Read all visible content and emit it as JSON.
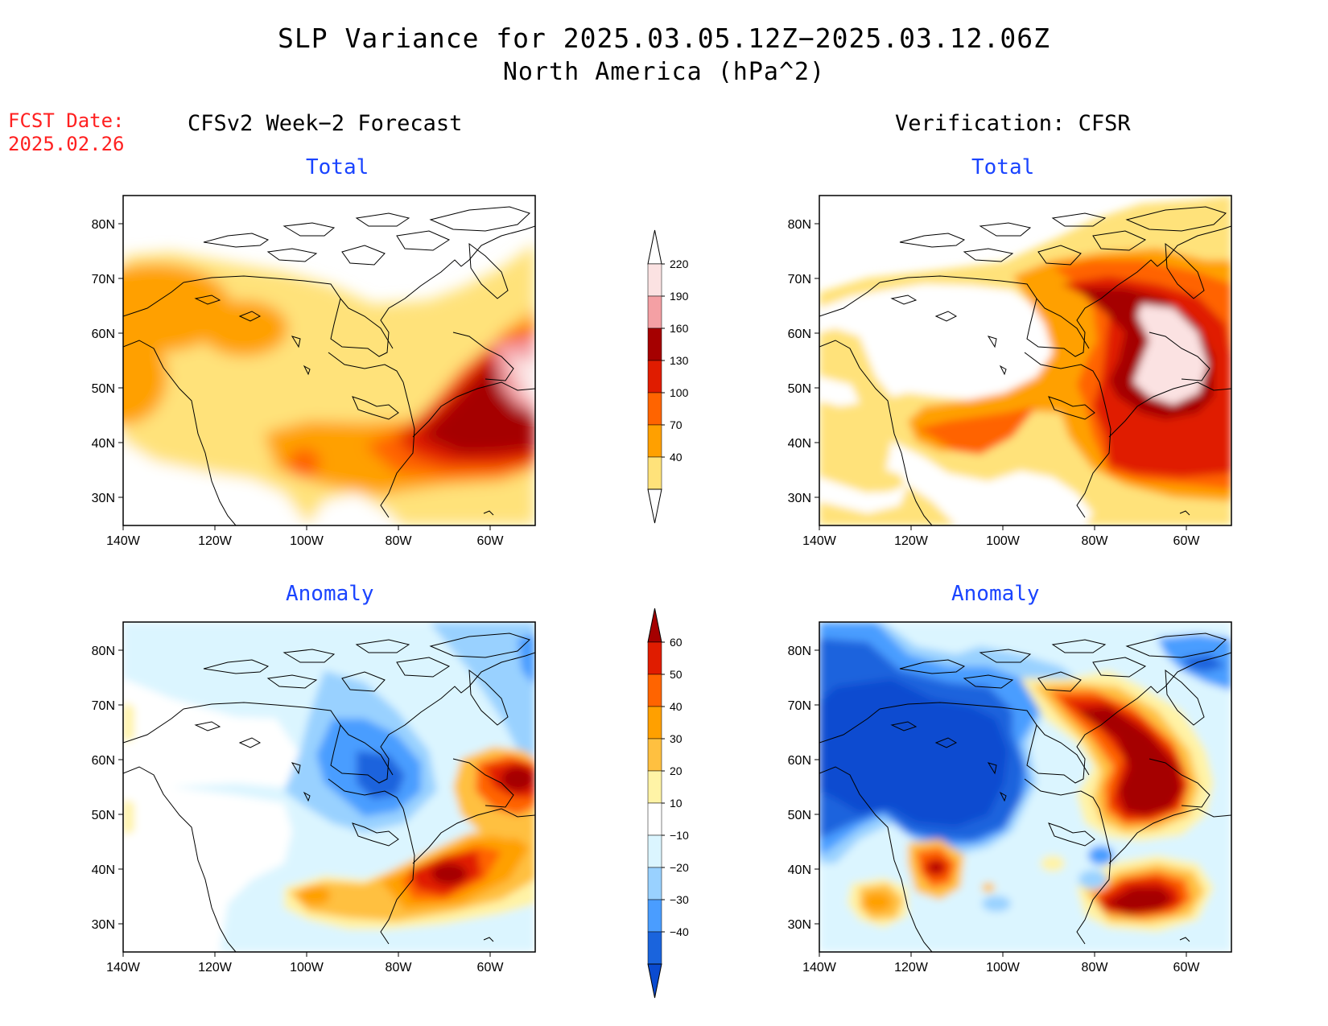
{
  "title": "SLP Variance for 2025.03.05.12Z−2025.03.12.06Z",
  "subtitle": "North America (hPa^2)",
  "forecast_date": {
    "label": "FCST Date:",
    "value": "2025.02.26"
  },
  "columns": [
    {
      "title": "CFSv2 Week−2 Forecast"
    },
    {
      "title": "Verification: CFSR"
    }
  ],
  "panels": [
    {
      "title": "Total",
      "column": "forecast",
      "field": "total"
    },
    {
      "title": "Total",
      "column": "verification",
      "field": "total"
    },
    {
      "title": "Anomaly",
      "column": "forecast",
      "field": "anomaly"
    },
    {
      "title": "Anomaly",
      "column": "verification",
      "field": "anomaly"
    }
  ],
  "map": {
    "lat_labels": [
      "80N",
      "70N",
      "60N",
      "50N",
      "40N",
      "30N"
    ],
    "lon_labels": [
      "140W",
      "120W",
      "100W",
      "80W",
      "60W"
    ]
  },
  "colorbars": {
    "total": {
      "labels": [
        "220",
        "190",
        "160",
        "130",
        "100",
        "70",
        "40"
      ],
      "colors": [
        "#fbe2e2",
        "#f4a0a4",
        "#a50000",
        "#e01c00",
        "#ff6400",
        "#ffa000",
        "#ffe27a"
      ]
    },
    "anomaly": {
      "labels": [
        "60",
        "50",
        "40",
        "30",
        "20",
        "10",
        "−10",
        "−20",
        "−30",
        "−40"
      ],
      "colors": [
        "#a50000",
        "#e01c00",
        "#ff6400",
        "#ffa000",
        "#ffc040",
        "#fff3a6",
        "#ffffff",
        "#dbf5ff",
        "#99d1ff",
        "#4a9dff",
        "#1a64dd",
        "#0a4bd0"
      ]
    }
  },
  "colors": {
    "title_blue": "#1a44ff",
    "fcst_red": "#ff2020"
  }
}
